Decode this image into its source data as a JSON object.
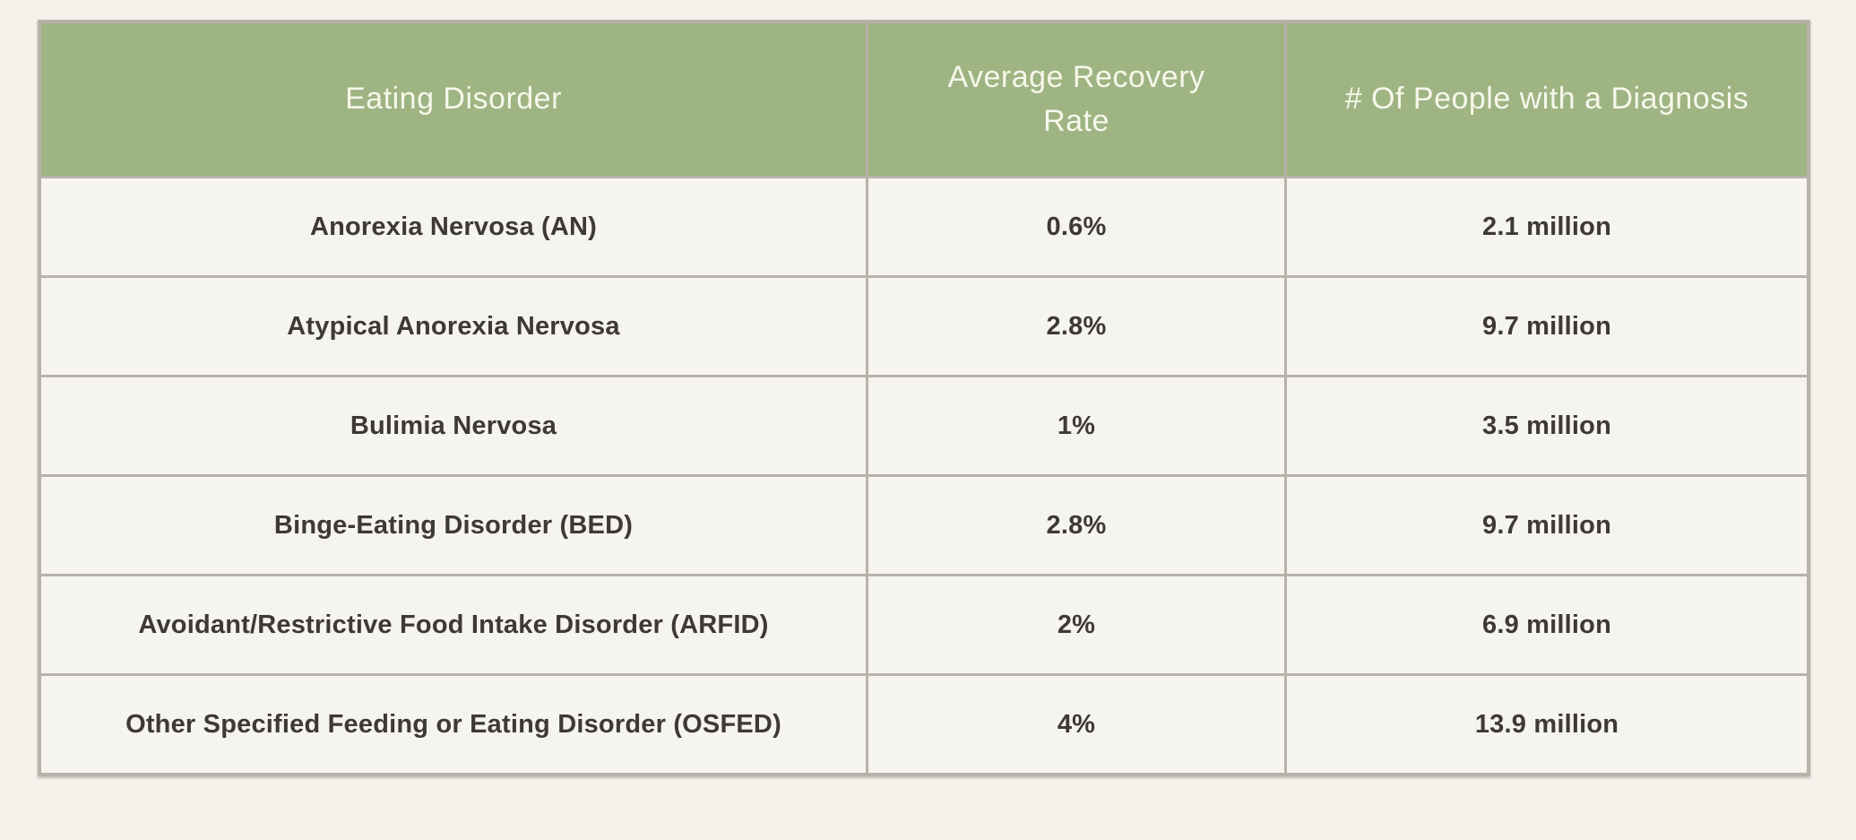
{
  "chart_data": {
    "type": "table",
    "title": "",
    "columns": [
      "Eating Disorder",
      "Average Recovery Rate",
      "# Of People with a Diagnosis"
    ],
    "rows": [
      [
        "Anorexia Nervosa (AN)",
        "0.6%",
        "2.1 million"
      ],
      [
        "Atypical Anorexia Nervosa",
        "2.8%",
        "9.7 million"
      ],
      [
        "Bulimia Nervosa",
        "1%",
        "3.5 million"
      ],
      [
        "Binge-Eating Disorder (BED)",
        "2.8%",
        "9.7 million"
      ],
      [
        "Avoidant/Restrictive Food Intake Disorder (ARFID)",
        "2%",
        "6.9 million"
      ],
      [
        "Other Specified Feeding or Eating Disorder (OSFED)",
        "4%",
        "13.9 million"
      ]
    ]
  },
  "colors": {
    "page_bg": "#f5f2ec",
    "cell_bg": "#f6f4ee",
    "header_bg": "#9fb483",
    "header_text": "#f6f7ea",
    "body_text": "#3d3935",
    "border": "#b7b2aa"
  }
}
